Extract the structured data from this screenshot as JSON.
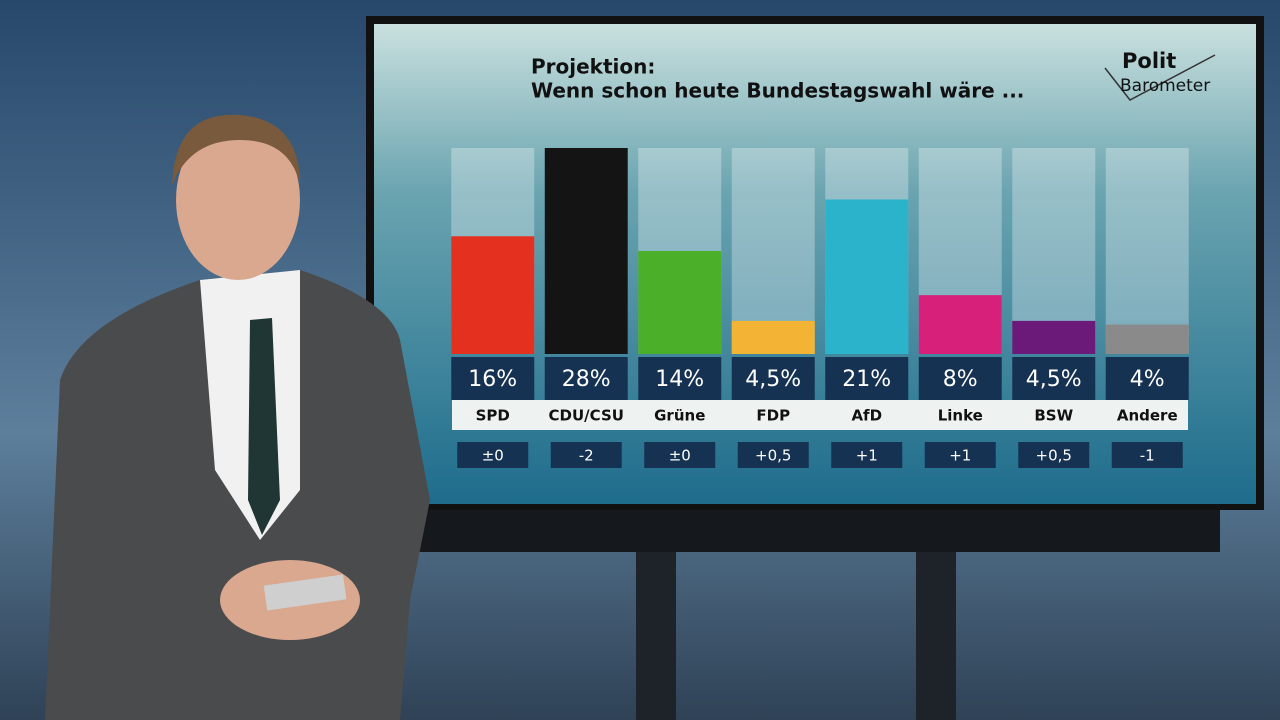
{
  "chart_data": {
    "type": "bar",
    "title": "Projektion:",
    "subtitle": "Wenn schon heute Bundestagswahl wäre ...",
    "logo": [
      "Polit",
      "Barometer"
    ],
    "categories": [
      "SPD",
      "CDU/CSU",
      "Grüne",
      "FDP",
      "AfD",
      "Linke",
      "BSW",
      "Andere"
    ],
    "values": [
      16,
      28,
      14,
      4.5,
      21,
      8,
      4.5,
      4
    ],
    "value_labels": [
      "16%",
      "28%",
      "14%",
      "4,5%",
      "21%",
      "8%",
      "4,5%",
      "4%"
    ],
    "colors": [
      "#e3301f",
      "#141414",
      "#4caf2a",
      "#f3b335",
      "#2bb3cc",
      "#d6207a",
      "#6b1a7a",
      "#8a8a8a"
    ],
    "changes": {
      "values": [
        0,
        -2,
        0,
        0.5,
        1,
        1,
        0.5,
        -1
      ],
      "value_labels": [
        "±0",
        "-2",
        "±0",
        "+0,5",
        "+1",
        "+1",
        "+0,5",
        "-1"
      ]
    },
    "ylim": [
      0,
      28
    ]
  }
}
